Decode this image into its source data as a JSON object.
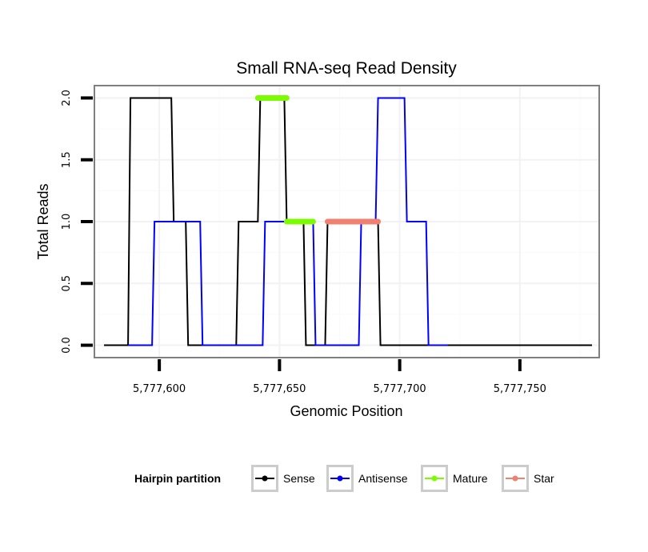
{
  "chart_data": {
    "type": "line",
    "title": "Small RNA-seq Read Density",
    "xlabel": "Genomic Position",
    "ylabel": "Total Reads",
    "xlim": [
      5777573,
      5777783
    ],
    "ylim": [
      -0.1,
      2.1
    ],
    "x_ticks": [
      5777600,
      5777650,
      5777700,
      5777750
    ],
    "x_tick_labels": [
      "5,777,600",
      "5,777,650",
      "5,777,700",
      "5,777,750"
    ],
    "y_ticks": [
      0,
      0.5,
      1,
      1.5,
      2
    ],
    "y_tick_labels": [
      "0.0",
      "0.5",
      "1.0",
      "1.5",
      "2.0"
    ],
    "grid": true,
    "legend": {
      "title": "Hairpin partition",
      "position": "bottom",
      "entries": [
        {
          "name": "Sense",
          "color": "#000000"
        },
        {
          "name": "Antisense",
          "color": "#0000ff"
        },
        {
          "name": "Mature",
          "color": "#7cfc00"
        },
        {
          "name": "Star",
          "color": "#f08070"
        }
      ]
    },
    "series": [
      {
        "name": "Sense",
        "color": "#000000",
        "points": [
          [
            5777577,
            0
          ],
          [
            5777587,
            0
          ],
          [
            5777588,
            2
          ],
          [
            5777605,
            2
          ],
          [
            5777606,
            1
          ],
          [
            5777611,
            1
          ],
          [
            5777612,
            0
          ],
          [
            5777632,
            0
          ],
          [
            5777633,
            1
          ],
          [
            5777641,
            1
          ],
          [
            5777642,
            2
          ],
          [
            5777652,
            2
          ],
          [
            5777653,
            1
          ],
          [
            5777660,
            1
          ],
          [
            5777661,
            0
          ],
          [
            5777669,
            0
          ],
          [
            5777670,
            1
          ],
          [
            5777691,
            1
          ],
          [
            5777692,
            0
          ],
          [
            5777780,
            0
          ]
        ]
      },
      {
        "name": "Antisense",
        "color": "#0000ff",
        "points": [
          [
            5777587,
            0
          ],
          [
            5777597,
            0
          ],
          [
            5777598,
            1
          ],
          [
            5777617,
            1
          ],
          [
            5777618,
            0
          ],
          [
            5777643,
            0
          ],
          [
            5777644,
            1
          ],
          [
            5777664,
            1
          ],
          [
            5777665,
            0
          ],
          [
            5777683,
            0
          ],
          [
            5777684,
            1
          ],
          [
            5777690,
            1
          ],
          [
            5777691,
            2
          ],
          [
            5777702,
            2
          ],
          [
            5777703,
            1
          ],
          [
            5777711,
            1
          ],
          [
            5777712,
            0
          ],
          [
            5777720,
            0
          ]
        ]
      },
      {
        "name": "Mature",
        "color": "#7cfc00",
        "segments": [
          {
            "x_start": 5777641,
            "x_end": 5777653,
            "y": 2
          },
          {
            "x_start": 5777653,
            "x_end": 5777664,
            "y": 1
          }
        ]
      },
      {
        "name": "Star",
        "color": "#f08070",
        "segments": [
          {
            "x_start": 5777670,
            "x_end": 5777691,
            "y": 1
          }
        ]
      }
    ]
  }
}
